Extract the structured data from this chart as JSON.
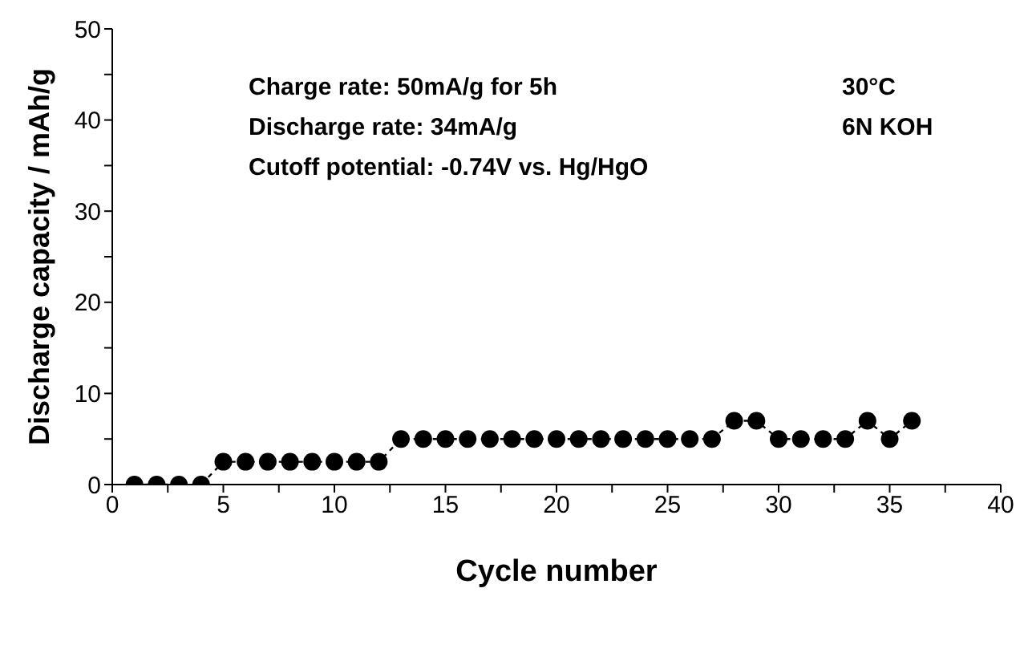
{
  "chart_data": {
    "type": "line",
    "xlabel": "Cycle number",
    "ylabel": "Discharge capacity / mAh/g",
    "x": [
      1,
      2,
      3,
      4,
      5,
      6,
      7,
      8,
      9,
      10,
      11,
      12,
      13,
      14,
      15,
      16,
      17,
      18,
      19,
      20,
      21,
      22,
      23,
      24,
      25,
      26,
      27,
      28,
      29,
      30,
      31,
      32,
      33,
      34,
      35,
      36
    ],
    "series": [
      {
        "color": "#000000",
        "values": [
          0,
          0,
          0,
          0,
          2.5,
          2.5,
          2.5,
          2.5,
          2.5,
          2.5,
          2.5,
          2.5,
          5,
          5,
          5,
          5,
          5,
          5,
          5,
          5,
          5,
          5,
          5,
          5,
          5,
          5,
          5,
          7,
          7,
          5,
          5,
          5,
          5,
          7,
          5,
          7
        ]
      }
    ],
    "xlim": [
      0,
      40
    ],
    "xticks": [
      0,
      {
        "value": 2.5,
        "label": null
      },
      5,
      {
        "value": 7.5,
        "label": null
      },
      10,
      {
        "value": 12.5,
        "label": null
      },
      15,
      {
        "value": 17.5,
        "label": null
      },
      20,
      {
        "value": 22.5,
        "label": null
      },
      25,
      {
        "value": 27.5,
        "label": null
      },
      30,
      {
        "value": 32.5,
        "label": null
      },
      35,
      {
        "value": 37.5,
        "label": null
      },
      40
    ],
    "ylim": [
      0,
      50
    ],
    "yticks": [
      0,
      {
        "value": 5,
        "label": null
      },
      10,
      {
        "value": 15,
        "label": null
      },
      20,
      {
        "value": 25,
        "label": null
      },
      30,
      {
        "value": 35,
        "label": null
      },
      40,
      {
        "value": 45,
        "label": null
      },
      50
    ],
    "marker": "circle",
    "line_style": "dashed",
    "grid": false,
    "annotations": [
      "Charge rate: 50mA/g for 5h",
      "Discharge rate: 34mA/g",
      "Cutoff potential: -0.74V vs. Hg/HgO",
      "30°C",
      "6N KOH"
    ]
  }
}
